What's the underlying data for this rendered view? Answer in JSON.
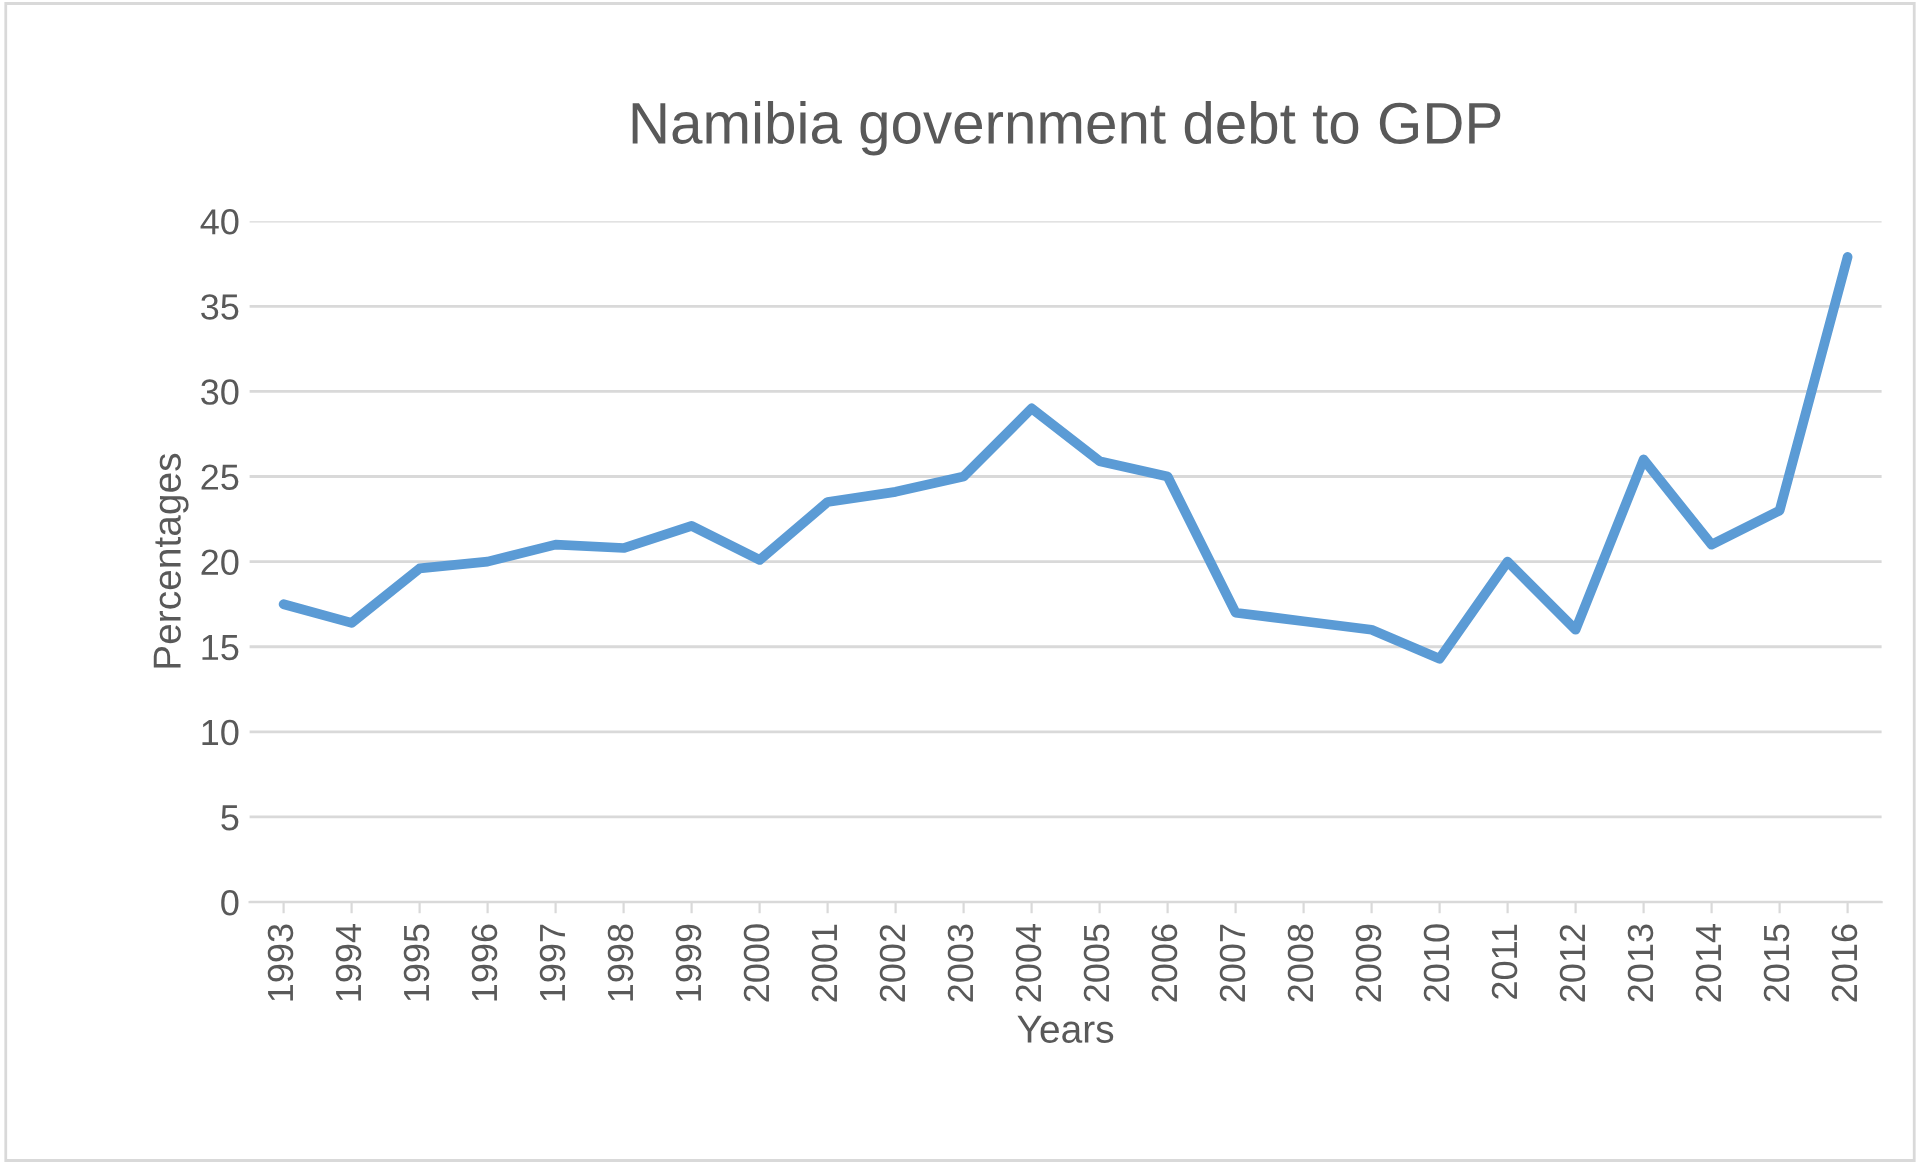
{
  "chart_data": {
    "type": "line",
    "title": "Namibia government debt to GDP",
    "xlabel": "Years",
    "ylabel": "Percentages",
    "categories": [
      "1993",
      "1994",
      "1995",
      "1996",
      "1997",
      "1998",
      "1999",
      "2000",
      "2001",
      "2002",
      "2003",
      "2004",
      "2005",
      "2006",
      "2007",
      "2008",
      "2009",
      "2010",
      "2011",
      "2012",
      "2013",
      "2014",
      "2015",
      "2016"
    ],
    "series": [
      {
        "color": "#5b9bd5",
        "values": [
          17.5,
          16.4,
          19.6,
          20,
          21,
          20.8,
          22.1,
          20.1,
          23.5,
          24.1,
          25,
          29,
          25.9,
          25,
          17,
          16.5,
          16,
          14.3,
          20,
          16,
          26,
          21,
          23,
          37.9
        ]
      }
    ],
    "ylim": [
      0,
      40
    ],
    "yticks": [
      0,
      5,
      10,
      15,
      20,
      25,
      30,
      35,
      40
    ],
    "grid": "y",
    "legend": false
  }
}
